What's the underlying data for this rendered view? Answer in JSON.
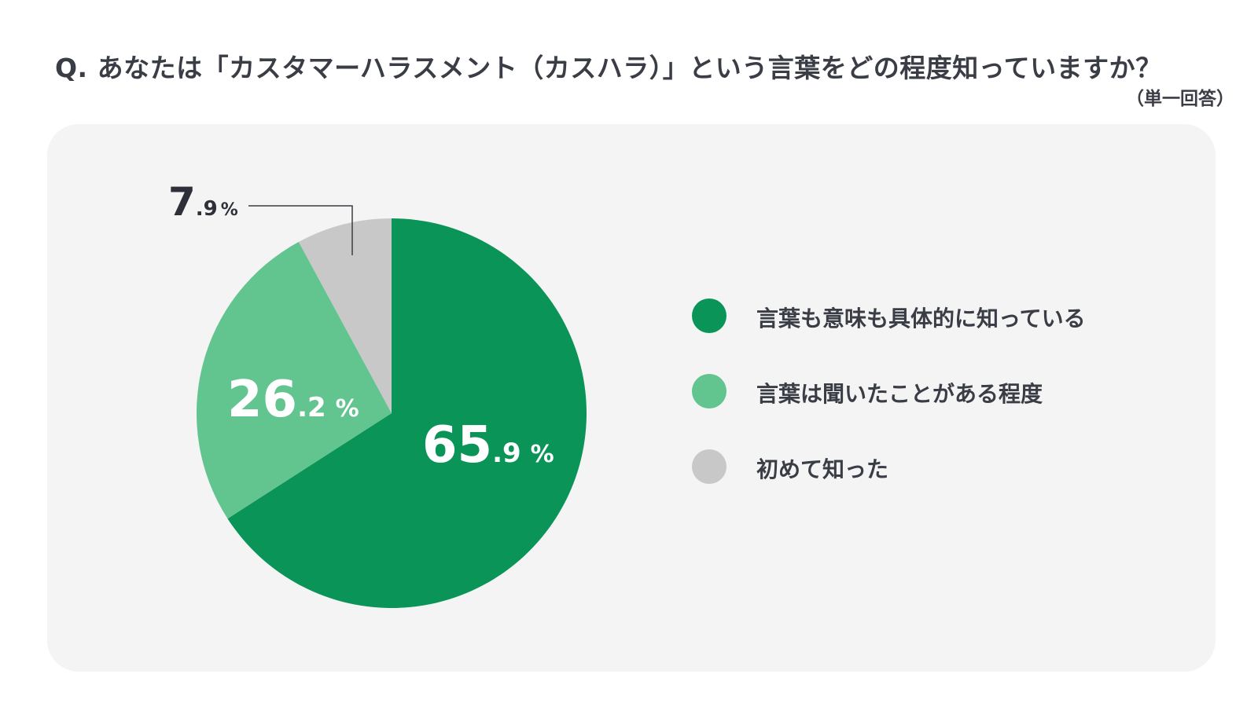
{
  "title": "Q. あなたは「カスタマーハラスメント（カスハラ）」という言葉をどの程度知っていますか？",
  "subtitle": "（単一回答）",
  "chart_data": {
    "type": "pie",
    "categories": [
      "言葉も意味も具体的に知っている",
      "言葉は聞いたことがある程度",
      "初めて知った"
    ],
    "values": [
      65.9,
      26.2,
      7.9
    ],
    "value_labels": [
      {
        "int": "65",
        "dec": ".9",
        "unit": "%"
      },
      {
        "int": "26",
        "dec": ".2",
        "unit": "%"
      },
      {
        "int": "7",
        "dec": ".9",
        "unit": "%"
      }
    ],
    "colors": [
      "#0b9458",
      "#62c48f",
      "#c8c8c8"
    ],
    "legend_position": "right"
  }
}
